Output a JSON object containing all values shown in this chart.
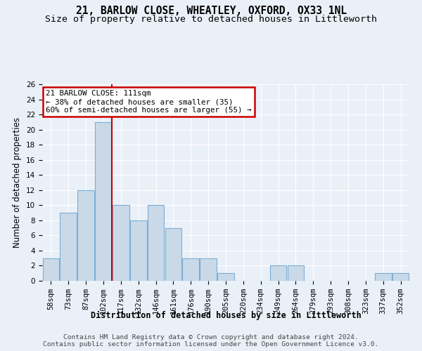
{
  "title1": "21, BARLOW CLOSE, WHEATLEY, OXFORD, OX33 1NL",
  "title2": "Size of property relative to detached houses in Littleworth",
  "xlabel": "Distribution of detached houses by size in Littleworth",
  "ylabel": "Number of detached properties",
  "bin_labels": [
    "58sqm",
    "73sqm",
    "87sqm",
    "102sqm",
    "117sqm",
    "132sqm",
    "146sqm",
    "161sqm",
    "176sqm",
    "190sqm",
    "205sqm",
    "220sqm",
    "234sqm",
    "249sqm",
    "264sqm",
    "279sqm",
    "293sqm",
    "308sqm",
    "323sqm",
    "337sqm",
    "352sqm"
  ],
  "bar_values": [
    3,
    9,
    12,
    21,
    10,
    8,
    10,
    7,
    3,
    3,
    1,
    0,
    0,
    2,
    2,
    0,
    0,
    0,
    0,
    1,
    1
  ],
  "bar_color": "#c9d9e8",
  "bar_edgecolor": "#7aaed6",
  "vline_x": 3.5,
  "vline_color": "#cc0000",
  "annotation_line1": "21 BARLOW CLOSE: 111sqm",
  "annotation_line2": "← 38% of detached houses are smaller (35)",
  "annotation_line3": "60% of semi-detached houses are larger (55) →",
  "ylim": [
    0,
    26
  ],
  "yticks": [
    0,
    2,
    4,
    6,
    8,
    10,
    12,
    14,
    16,
    18,
    20,
    22,
    24,
    26
  ],
  "footer": "Contains HM Land Registry data © Crown copyright and database right 2024.\nContains public sector information licensed under the Open Government Licence v3.0.",
  "background_color": "#eaf0f8",
  "plot_background_color": "#eaf0f8",
  "grid_color": "#ffffff",
  "title_fontsize": 10.5,
  "subtitle_fontsize": 9.5,
  "xlabel_fontsize": 8.5,
  "ylabel_fontsize": 8.5,
  "tick_fontsize": 7.5,
  "annotation_fontsize": 7.8,
  "footer_fontsize": 6.8
}
